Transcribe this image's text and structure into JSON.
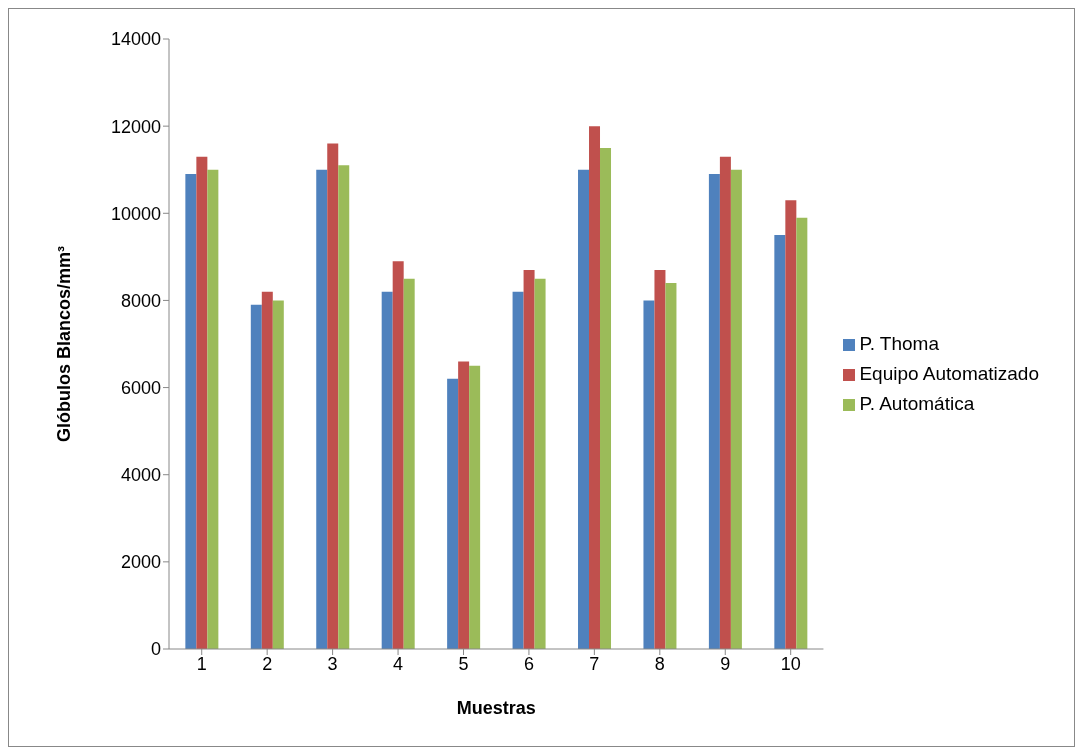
{
  "chart_data": {
    "type": "bar",
    "xlabel": "Muestras",
    "ylabel": "Glóbulos Blancos/mm³",
    "categories": [
      "1",
      "2",
      "3",
      "4",
      "5",
      "6",
      "7",
      "8",
      "9",
      "10"
    ],
    "series": [
      {
        "name": "P. Thoma",
        "color": "#4f81bd",
        "values": [
          10900,
          7900,
          11000,
          8200,
          6200,
          8200,
          11000,
          8000,
          10900,
          9500
        ]
      },
      {
        "name": "Equipo Automatizado",
        "color": "#c0504d",
        "values": [
          11300,
          8200,
          11600,
          8900,
          6600,
          8700,
          12000,
          8700,
          11300,
          10300
        ]
      },
      {
        "name": "P. Automática",
        "color": "#9bbb59",
        "values": [
          11000,
          8000,
          11100,
          8500,
          6500,
          8500,
          11500,
          8400,
          11000,
          9900
        ]
      }
    ],
    "ylim": [
      0,
      14000
    ],
    "yticks": [
      0,
      2000,
      4000,
      6000,
      8000,
      10000,
      12000,
      14000
    ],
    "grid": false,
    "legend": "right"
  }
}
